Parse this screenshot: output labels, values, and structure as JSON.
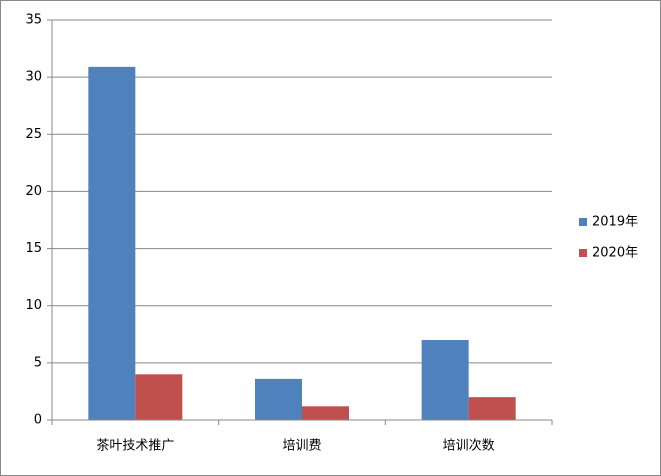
{
  "chart_data": {
    "type": "bar",
    "categories": [
      "茶叶技术推广",
      "培训费",
      "培训次数"
    ],
    "series": [
      {
        "name": "2019年",
        "color": "#4f81bd",
        "values": [
          30.9,
          3.6,
          7.0
        ]
      },
      {
        "name": "2020年",
        "color": "#c0504d",
        "values": [
          4.0,
          1.2,
          2.0
        ]
      }
    ],
    "ylim": [
      0,
      35
    ],
    "yticks": [
      0,
      5,
      10,
      15,
      20,
      25,
      30,
      35
    ],
    "grid": true,
    "legend": "right"
  }
}
